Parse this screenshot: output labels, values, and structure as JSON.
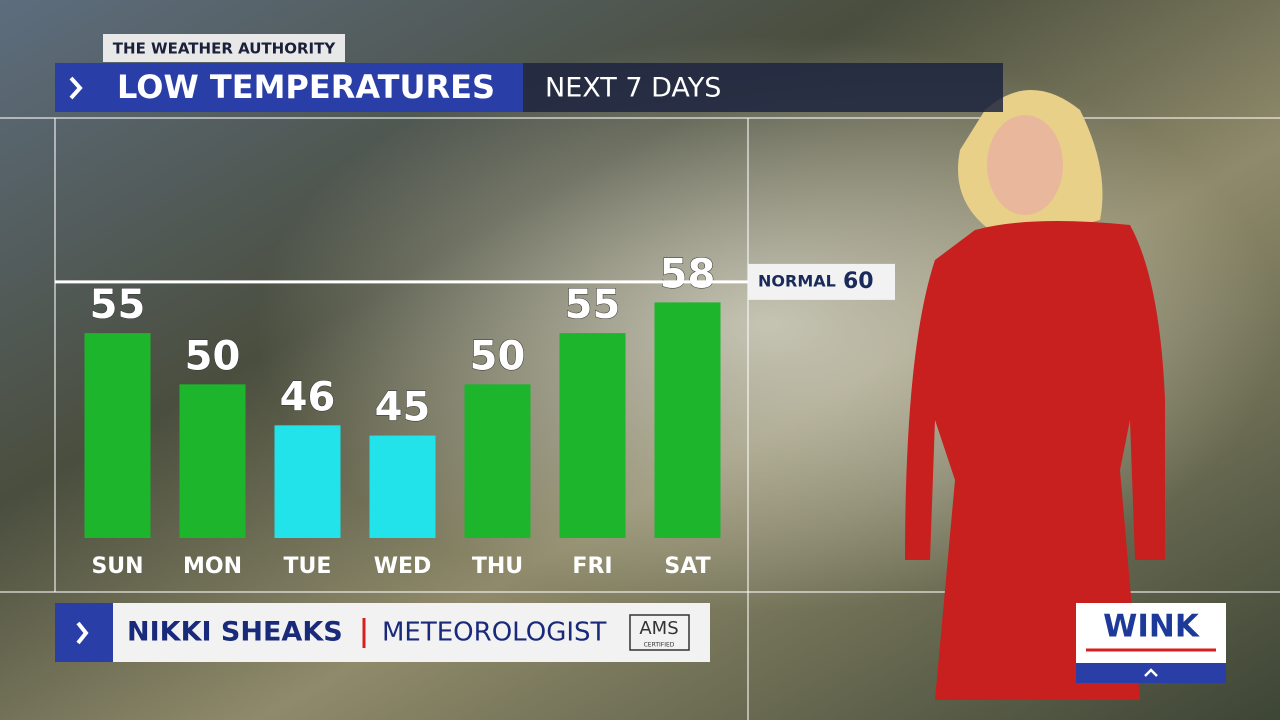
{
  "brand": "THE WEATHER AUTHORITY",
  "chart_data": {
    "type": "bar",
    "title": "LOW TEMPERATURES",
    "subtitle": "NEXT 7 DAYS",
    "categories": [
      "SUN",
      "MON",
      "TUE",
      "WED",
      "THU",
      "FRI",
      "SAT"
    ],
    "values": [
      55,
      50,
      46,
      45,
      50,
      55,
      58
    ],
    "colors": [
      "#1cb52c",
      "#1cb52c",
      "#22e2ea",
      "#22e2ea",
      "#1cb52c",
      "#1cb52c",
      "#1cb52c"
    ],
    "ylim": [
      35,
      76
    ],
    "normal": {
      "label": "NORMAL",
      "value": 60
    }
  },
  "lower_third": {
    "name": "NIKKI SHEAKS",
    "role": "METEOROLOGIST",
    "badge": "AMS",
    "badge_sub": "CERTIFIED"
  },
  "logo": "WINK"
}
